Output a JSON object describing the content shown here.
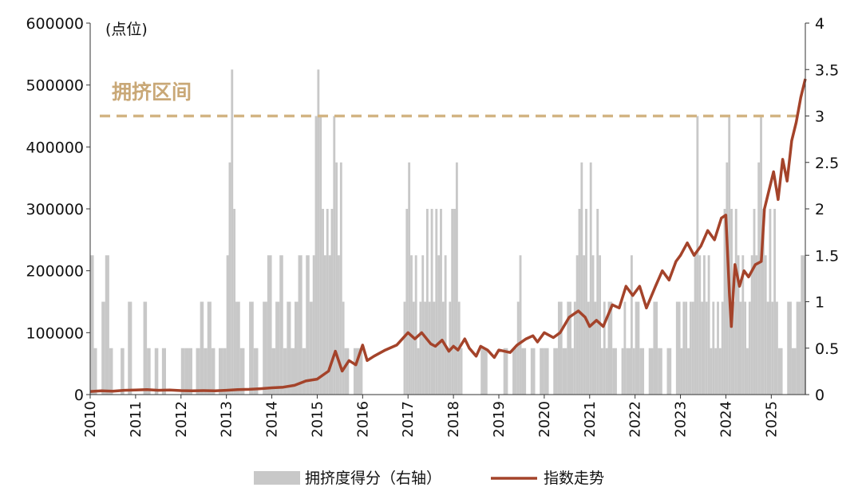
{
  "chart_data": {
    "type": "bar+line",
    "unit_label": "(点位)",
    "annotation": {
      "text": "拥挤区间",
      "y_right": 3.0
    },
    "colors": {
      "bars": "#c8c8c8",
      "line": "#a4432a",
      "threshold": "#d2b483",
      "annotation": "#c9a877"
    },
    "left_axis": {
      "min": 0,
      "max": 600000,
      "ticks": [
        "0",
        "100000",
        "200000",
        "300000",
        "400000",
        "500000",
        "600000"
      ]
    },
    "right_axis": {
      "min": 0,
      "max": 4,
      "ticks": [
        "0",
        "0.5",
        "1",
        "1.5",
        "2",
        "2.5",
        "3",
        "3.5",
        "4"
      ]
    },
    "x_axis": {
      "start": 2010,
      "end": 2025.75,
      "ticks": [
        "2010",
        "2011",
        "2012",
        "2013",
        "2014",
        "2015",
        "2016",
        "2017",
        "2018",
        "2019",
        "2020",
        "2021",
        "2022",
        "2023",
        "2024",
        "2025"
      ]
    },
    "legend": [
      {
        "type": "bar",
        "label": "拥挤度得分（右轴）"
      },
      {
        "type": "line",
        "label": "指数走势"
      }
    ],
    "index_series": [
      [
        2010.0,
        5000
      ],
      [
        2010.25,
        6000
      ],
      [
        2010.5,
        5500
      ],
      [
        2010.75,
        7000
      ],
      [
        2011.0,
        7500
      ],
      [
        2011.25,
        8000
      ],
      [
        2011.5,
        7000
      ],
      [
        2011.75,
        7500
      ],
      [
        2012.0,
        6500
      ],
      [
        2012.25,
        6000
      ],
      [
        2012.5,
        6500
      ],
      [
        2012.75,
        6000
      ],
      [
        2013.0,
        7000
      ],
      [
        2013.25,
        8000
      ],
      [
        2013.5,
        8500
      ],
      [
        2013.75,
        9500
      ],
      [
        2014.0,
        11000
      ],
      [
        2014.25,
        12000
      ],
      [
        2014.5,
        15000
      ],
      [
        2014.75,
        22000
      ],
      [
        2015.0,
        25000
      ],
      [
        2015.25,
        38000
      ],
      [
        2015.4,
        70000
      ],
      [
        2015.55,
        38000
      ],
      [
        2015.7,
        55000
      ],
      [
        2015.85,
        48000
      ],
      [
        2016.0,
        80000
      ],
      [
        2016.1,
        55000
      ],
      [
        2016.25,
        62000
      ],
      [
        2016.5,
        72000
      ],
      [
        2016.75,
        80000
      ],
      [
        2017.0,
        100000
      ],
      [
        2017.15,
        90000
      ],
      [
        2017.3,
        100000
      ],
      [
        2017.5,
        82000
      ],
      [
        2017.6,
        78000
      ],
      [
        2017.75,
        88000
      ],
      [
        2017.9,
        70000
      ],
      [
        2018.0,
        78000
      ],
      [
        2018.1,
        72000
      ],
      [
        2018.25,
        90000
      ],
      [
        2018.35,
        75000
      ],
      [
        2018.5,
        62000
      ],
      [
        2018.6,
        78000
      ],
      [
        2018.75,
        72000
      ],
      [
        2018.9,
        60000
      ],
      [
        2019.0,
        72000
      ],
      [
        2019.25,
        68000
      ],
      [
        2019.4,
        80000
      ],
      [
        2019.6,
        90000
      ],
      [
        2019.75,
        95000
      ],
      [
        2019.85,
        85000
      ],
      [
        2020.0,
        100000
      ],
      [
        2020.2,
        92000
      ],
      [
        2020.35,
        100000
      ],
      [
        2020.55,
        125000
      ],
      [
        2020.75,
        135000
      ],
      [
        2020.9,
        125000
      ],
      [
        2021.0,
        110000
      ],
      [
        2021.15,
        120000
      ],
      [
        2021.3,
        110000
      ],
      [
        2021.5,
        145000
      ],
      [
        2021.65,
        140000
      ],
      [
        2021.8,
        175000
      ],
      [
        2021.95,
        160000
      ],
      [
        2022.1,
        175000
      ],
      [
        2022.25,
        140000
      ],
      [
        2022.45,
        175000
      ],
      [
        2022.6,
        200000
      ],
      [
        2022.75,
        185000
      ],
      [
        2022.9,
        215000
      ],
      [
        2023.0,
        225000
      ],
      [
        2023.15,
        245000
      ],
      [
        2023.3,
        225000
      ],
      [
        2023.45,
        240000
      ],
      [
        2023.6,
        265000
      ],
      [
        2023.75,
        250000
      ],
      [
        2023.9,
        285000
      ],
      [
        2024.0,
        290000
      ],
      [
        2024.08,
        160000
      ],
      [
        2024.12,
        110000
      ],
      [
        2024.2,
        210000
      ],
      [
        2024.3,
        175000
      ],
      [
        2024.4,
        200000
      ],
      [
        2024.5,
        190000
      ],
      [
        2024.65,
        210000
      ],
      [
        2024.78,
        215000
      ],
      [
        2024.85,
        300000
      ],
      [
        2024.95,
        330000
      ],
      [
        2025.05,
        360000
      ],
      [
        2025.15,
        315000
      ],
      [
        2025.25,
        380000
      ],
      [
        2025.35,
        345000
      ],
      [
        2025.45,
        410000
      ],
      [
        2025.55,
        440000
      ],
      [
        2025.65,
        480000
      ],
      [
        2025.75,
        510000
      ]
    ],
    "crowding_series": [
      [
        2010.0,
        1.5
      ],
      [
        2010.08,
        0.5
      ],
      [
        2010.15,
        0.0
      ],
      [
        2010.25,
        1.0
      ],
      [
        2010.33,
        1.5
      ],
      [
        2010.42,
        0.5
      ],
      [
        2010.5,
        0.0
      ],
      [
        2010.67,
        0.5
      ],
      [
        2010.75,
        0.0
      ],
      [
        2010.83,
        1.0
      ],
      [
        2010.92,
        0.0
      ],
      [
        2011.08,
        0.0
      ],
      [
        2011.17,
        1.0
      ],
      [
        2011.25,
        0.5
      ],
      [
        2011.33,
        0.0
      ],
      [
        2011.42,
        0.5
      ],
      [
        2011.5,
        0.0
      ],
      [
        2011.58,
        0.5
      ],
      [
        2011.67,
        0.0
      ],
      [
        2011.83,
        0.0
      ],
      [
        2012.0,
        0.5
      ],
      [
        2012.08,
        0.5
      ],
      [
        2012.17,
        0.5
      ],
      [
        2012.25,
        0.0
      ],
      [
        2012.33,
        0.5
      ],
      [
        2012.42,
        1.0
      ],
      [
        2012.5,
        0.5
      ],
      [
        2012.58,
        1.0
      ],
      [
        2012.67,
        0.5
      ],
      [
        2012.75,
        0.0
      ],
      [
        2012.83,
        0.5
      ],
      [
        2012.92,
        0.5
      ],
      [
        2013.0,
        1.5
      ],
      [
        2013.05,
        2.5
      ],
      [
        2013.1,
        3.5
      ],
      [
        2013.15,
        2.0
      ],
      [
        2013.2,
        1.0
      ],
      [
        2013.3,
        0.5
      ],
      [
        2013.4,
        0.0
      ],
      [
        2013.5,
        1.0
      ],
      [
        2013.6,
        0.5
      ],
      [
        2013.7,
        0.0
      ],
      [
        2013.8,
        1.0
      ],
      [
        2013.9,
        1.5
      ],
      [
        2014.0,
        0.5
      ],
      [
        2014.08,
        1.0
      ],
      [
        2014.17,
        1.5
      ],
      [
        2014.25,
        0.5
      ],
      [
        2014.33,
        1.0
      ],
      [
        2014.42,
        0.5
      ],
      [
        2014.5,
        1.0
      ],
      [
        2014.58,
        1.5
      ],
      [
        2014.67,
        0.5
      ],
      [
        2014.75,
        1.5
      ],
      [
        2014.83,
        1.0
      ],
      [
        2014.9,
        1.5
      ],
      [
        2014.95,
        3.0
      ],
      [
        2015.0,
        3.5
      ],
      [
        2015.05,
        3.0
      ],
      [
        2015.1,
        2.0
      ],
      [
        2015.15,
        1.5
      ],
      [
        2015.2,
        2.0
      ],
      [
        2015.25,
        1.5
      ],
      [
        2015.3,
        2.0
      ],
      [
        2015.35,
        3.0
      ],
      [
        2015.4,
        2.5
      ],
      [
        2015.45,
        1.5
      ],
      [
        2015.5,
        2.5
      ],
      [
        2015.55,
        1.0
      ],
      [
        2015.6,
        0.5
      ],
      [
        2015.7,
        0.0
      ],
      [
        2015.8,
        0.5
      ],
      [
        2016.0,
        0.0
      ],
      [
        2016.5,
        0.0
      ],
      [
        2016.85,
        0.0
      ],
      [
        2016.9,
        1.0
      ],
      [
        2016.95,
        2.0
      ],
      [
        2017.0,
        2.5
      ],
      [
        2017.05,
        1.5
      ],
      [
        2017.1,
        1.0
      ],
      [
        2017.15,
        1.5
      ],
      [
        2017.2,
        0.5
      ],
      [
        2017.25,
        1.0
      ],
      [
        2017.3,
        1.5
      ],
      [
        2017.35,
        1.0
      ],
      [
        2017.4,
        2.0
      ],
      [
        2017.45,
        1.0
      ],
      [
        2017.5,
        2.0
      ],
      [
        2017.55,
        1.0
      ],
      [
        2017.6,
        2.0
      ],
      [
        2017.65,
        1.5
      ],
      [
        2017.7,
        2.0
      ],
      [
        2017.75,
        1.0
      ],
      [
        2017.8,
        1.5
      ],
      [
        2017.85,
        0.5
      ],
      [
        2017.9,
        1.0
      ],
      [
        2017.95,
        2.0
      ],
      [
        2018.0,
        2.0
      ],
      [
        2018.05,
        2.5
      ],
      [
        2018.1,
        1.0
      ],
      [
        2018.15,
        0.5
      ],
      [
        2018.2,
        0.0
      ],
      [
        2018.5,
        0.0
      ],
      [
        2018.6,
        0.5
      ],
      [
        2018.75,
        0.0
      ],
      [
        2019.0,
        0.0
      ],
      [
        2019.1,
        0.5
      ],
      [
        2019.2,
        0.0
      ],
      [
        2019.3,
        0.5
      ],
      [
        2019.4,
        1.0
      ],
      [
        2019.45,
        1.5
      ],
      [
        2019.5,
        0.5
      ],
      [
        2019.6,
        0.0
      ],
      [
        2019.7,
        0.5
      ],
      [
        2019.8,
        0.0
      ],
      [
        2019.9,
        0.5
      ],
      [
        2020.0,
        0.5
      ],
      [
        2020.1,
        0.0
      ],
      [
        2020.2,
        0.5
      ],
      [
        2020.3,
        1.0
      ],
      [
        2020.4,
        0.5
      ],
      [
        2020.5,
        1.0
      ],
      [
        2020.6,
        0.5
      ],
      [
        2020.65,
        1.0
      ],
      [
        2020.7,
        1.5
      ],
      [
        2020.75,
        2.0
      ],
      [
        2020.8,
        2.5
      ],
      [
        2020.85,
        1.5
      ],
      [
        2020.9,
        2.0
      ],
      [
        2020.95,
        1.0
      ],
      [
        2021.0,
        2.5
      ],
      [
        2021.05,
        1.5
      ],
      [
        2021.1,
        1.0
      ],
      [
        2021.15,
        2.0
      ],
      [
        2021.2,
        1.5
      ],
      [
        2021.25,
        0.5
      ],
      [
        2021.3,
        1.0
      ],
      [
        2021.35,
        0.5
      ],
      [
        2021.4,
        1.0
      ],
      [
        2021.5,
        0.5
      ],
      [
        2021.6,
        0.0
      ],
      [
        2021.7,
        0.5
      ],
      [
        2021.75,
        1.0
      ],
      [
        2021.8,
        0.5
      ],
      [
        2021.9,
        1.5
      ],
      [
        2021.95,
        0.5
      ],
      [
        2022.0,
        1.0
      ],
      [
        2022.1,
        0.5
      ],
      [
        2022.2,
        0.0
      ],
      [
        2022.3,
        0.5
      ],
      [
        2022.4,
        1.0
      ],
      [
        2022.5,
        0.5
      ],
      [
        2022.6,
        0.0
      ],
      [
        2022.7,
        0.5
      ],
      [
        2022.8,
        0.0
      ],
      [
        2022.9,
        1.0
      ],
      [
        2023.0,
        0.5
      ],
      [
        2023.05,
        1.0
      ],
      [
        2023.1,
        1.0
      ],
      [
        2023.15,
        0.5
      ],
      [
        2023.2,
        1.0
      ],
      [
        2023.25,
        1.0
      ],
      [
        2023.3,
        1.5
      ],
      [
        2023.35,
        3.0
      ],
      [
        2023.4,
        1.5
      ],
      [
        2023.45,
        1.0
      ],
      [
        2023.5,
        1.5
      ],
      [
        2023.55,
        1.0
      ],
      [
        2023.6,
        1.5
      ],
      [
        2023.65,
        0.5
      ],
      [
        2023.7,
        1.0
      ],
      [
        2023.75,
        0.5
      ],
      [
        2023.8,
        1.0
      ],
      [
        2023.85,
        0.5
      ],
      [
        2023.9,
        1.0
      ],
      [
        2023.95,
        2.0
      ],
      [
        2024.0,
        2.5
      ],
      [
        2024.05,
        3.0
      ],
      [
        2024.1,
        2.0
      ],
      [
        2024.15,
        1.0
      ],
      [
        2024.2,
        2.0
      ],
      [
        2024.25,
        1.5
      ],
      [
        2024.3,
        1.0
      ],
      [
        2024.35,
        1.5
      ],
      [
        2024.4,
        1.0
      ],
      [
        2024.45,
        0.5
      ],
      [
        2024.5,
        1.0
      ],
      [
        2024.55,
        1.5
      ],
      [
        2024.6,
        2.0
      ],
      [
        2024.65,
        1.5
      ],
      [
        2024.7,
        2.5
      ],
      [
        2024.75,
        3.0
      ],
      [
        2024.8,
        2.0
      ],
      [
        2024.85,
        1.5
      ],
      [
        2024.9,
        1.0
      ],
      [
        2024.95,
        2.0
      ],
      [
        2025.0,
        1.0
      ],
      [
        2025.05,
        2.0
      ],
      [
        2025.1,
        1.0
      ],
      [
        2025.15,
        0.5
      ],
      [
        2025.25,
        0.0
      ],
      [
        2025.35,
        1.0
      ],
      [
        2025.45,
        0.5
      ],
      [
        2025.55,
        1.0
      ],
      [
        2025.65,
        1.5
      ],
      [
        2025.75,
        1.0
      ]
    ]
  }
}
